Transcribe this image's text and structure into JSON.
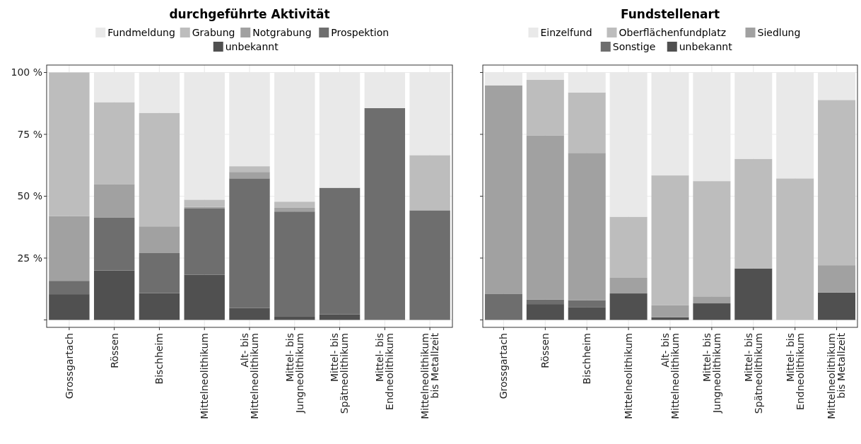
{
  "chart_data": [
    {
      "type": "bar",
      "title": "durchgeführte Aktivität",
      "stacked": true,
      "legend": "top",
      "grid": true,
      "categories": [
        "Grossgartach",
        "Rössen",
        "Bischheim",
        "Mittelneolithikum",
        "Alt- bis\nMittelneolithikum",
        "Mittel- bis\nJungneolithikum",
        "Mittel- bis\nSpätneolithikum",
        "Mittel- bis\nEndneolithikum",
        "Mittelneolithikum\nbis Metallzeit"
      ],
      "ylim": [
        -3,
        103
      ],
      "yticks": [
        {
          "value": 0,
          "label": null
        },
        {
          "value": 25,
          "label": "25 %"
        },
        {
          "value": 50,
          "label": "50 %"
        },
        {
          "value": 75,
          "label": "75 %"
        },
        {
          "value": 100,
          "label": "100 %"
        }
      ],
      "series": [
        {
          "name": "unbekannt",
          "color": "#505050",
          "values": [
            10.4,
            20.0,
            10.8,
            18.3,
            4.8,
            1.3,
            2.3,
            0,
            0
          ]
        },
        {
          "name": "Prospektion",
          "color": "#6e6e6e",
          "values": [
            5.4,
            21.3,
            16.2,
            26.7,
            52.4,
            42.5,
            51.1,
            85.6,
            44.3
          ]
        },
        {
          "name": "Notgrabung",
          "color": "#a1a1a1",
          "values": [
            26.2,
            13.6,
            10.8,
            0.7,
            2.6,
            1.5,
            0,
            0,
            0
          ]
        },
        {
          "name": "Grabung",
          "color": "#bdbdbd",
          "values": [
            58.0,
            33.1,
            45.9,
            2.9,
            2.3,
            2.5,
            0,
            0,
            22.3
          ]
        },
        {
          "name": "Fundmeldung",
          "color": "#e9e9e9",
          "values": [
            0,
            12.0,
            16.3,
            51.4,
            37.9,
            52.2,
            46.6,
            14.4,
            33.4
          ]
        }
      ]
    },
    {
      "type": "bar",
      "title": "Fundstellenart",
      "stacked": true,
      "legend": "top",
      "grid": true,
      "tick_labels": "x",
      "categories": [
        "Grossgartach",
        "Rössen",
        "Bischheim",
        "Mittelneolithikum",
        "Alt- bis\nMittelneolithikum",
        "Mittel- bis\nJungneolithikum",
        "Mittel- bis\nSpätneolithikum",
        "Mittel- bis\nEndneolithikum",
        "Mittelneolithikum\nbis Metallzeit"
      ],
      "ylim": [
        -3,
        103
      ],
      "yticks": [
        0,
        25,
        50,
        75,
        100
      ],
      "series": [
        {
          "name": "unbekannt",
          "color": "#505050",
          "values": [
            0,
            6.4,
            5.2,
            10.7,
            1.1,
            6.7,
            20.8,
            0,
            11.1
          ]
        },
        {
          "name": "Sonstige",
          "color": "#6e6e6e",
          "values": [
            10.6,
            1.8,
            2.8,
            0,
            0,
            0,
            0,
            0,
            0
          ]
        },
        {
          "name": "Siedlung",
          "color": "#a1a1a1",
          "values": [
            84.2,
            66.4,
            59.5,
            6.3,
            4.8,
            2.8,
            0,
            0,
            11.0
          ]
        },
        {
          "name": "Oberflächenfundplatz",
          "color": "#bdbdbd",
          "values": [
            0,
            22.4,
            24.4,
            24.7,
            52.5,
            46.6,
            44.3,
            57.2,
            66.8
          ]
        },
        {
          "name": "Einzelfund",
          "color": "#e9e9e9",
          "values": [
            5.2,
            3.0,
            8.1,
            58.3,
            41.6,
            43.9,
            34.9,
            42.8,
            11.1
          ]
        }
      ]
    }
  ]
}
